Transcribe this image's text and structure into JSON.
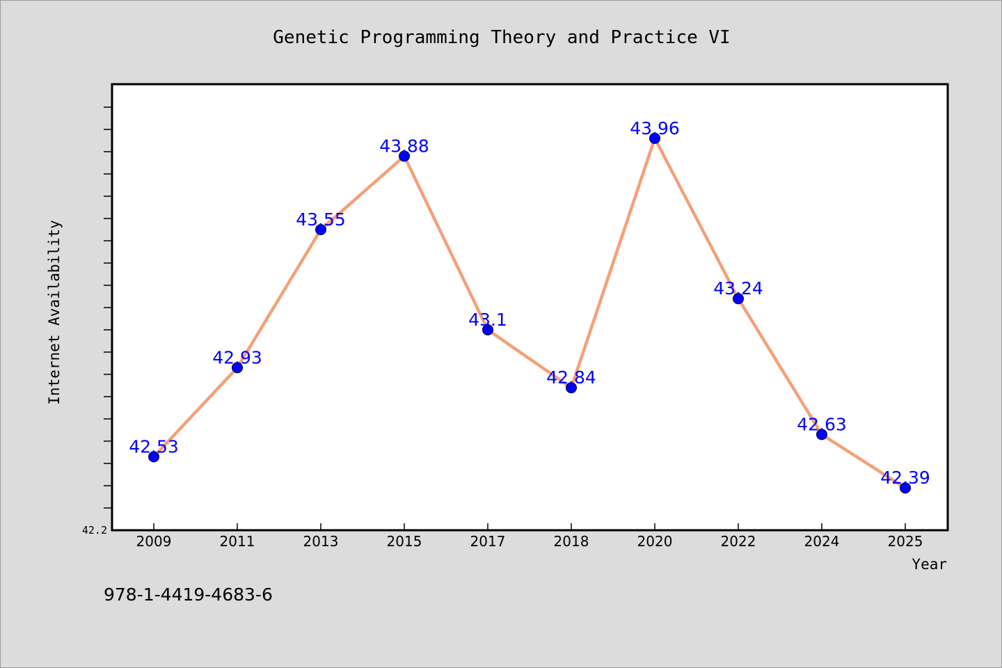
{
  "colors": {
    "background": "#dcdcdc",
    "plot_area": "#ffffff",
    "line": "#f4a07a",
    "marker": "#0000ff",
    "data_label": "#0000ff"
  },
  "footer": {
    "isbn": "978-1-4419-4683-6"
  },
  "chart_data": {
    "type": "line",
    "title": "Genetic Programming Theory and Practice VI",
    "xlabel": "Year",
    "ylabel": "Internet Availability",
    "categories": [
      "2009",
      "2011",
      "2013",
      "2015",
      "2017",
      "2018",
      "2020",
      "2022",
      "2024",
      "2025"
    ],
    "series": [
      {
        "values": [
          42.53,
          42.93,
          43.55,
          43.88,
          43.1,
          42.84,
          43.96,
          43.24,
          42.63,
          42.39
        ]
      }
    ],
    "y_min_label": "42.2",
    "ylim": [
      42.2,
      44.2
    ],
    "grid": false,
    "legend": "none",
    "marker": "circle",
    "data_labels": true
  }
}
